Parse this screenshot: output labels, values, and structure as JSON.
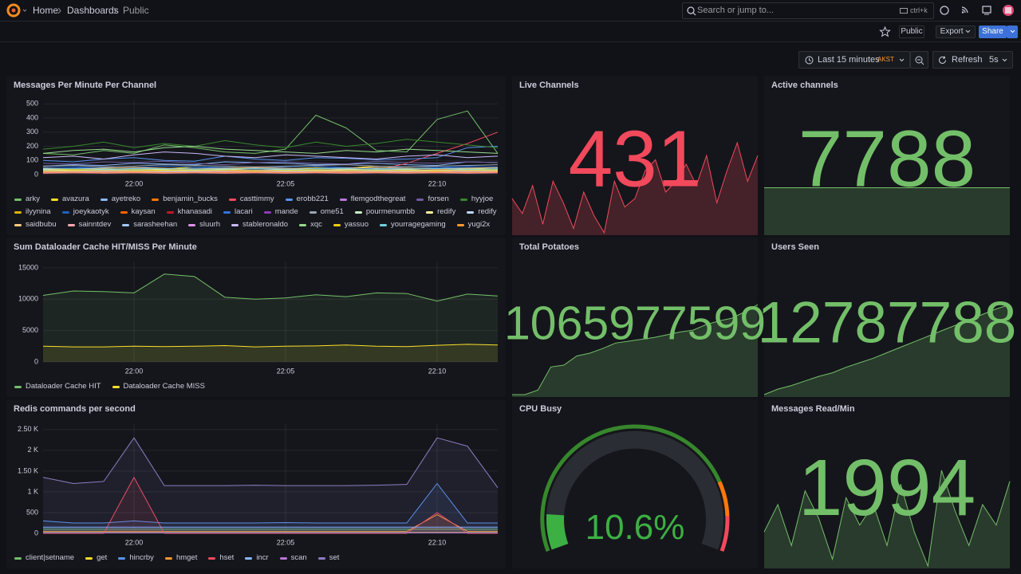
{
  "header": {
    "breadcrumbs": [
      "Home",
      "Dashboards",
      "Public"
    ],
    "search": "Search or jump to...",
    "shortcut": "ctrl+k"
  },
  "toolbar": {
    "badge": "Public",
    "export": "Export",
    "share": "Share",
    "time_range": "Last 15 minutes",
    "timezone": "AKST",
    "refresh": "Refresh",
    "interval": "5s"
  },
  "chart_data": [
    {
      "type": "line",
      "title": "Messages Per Minute Per Channel",
      "legend": "bottom",
      "grid": true,
      "categories": [
        null,
        null,
        null,
        "22:00",
        null,
        null,
        null,
        null,
        "22:05",
        null,
        null,
        null,
        null,
        "22:10",
        null,
        null
      ],
      "ylim": [
        0,
        530
      ],
      "yticks": [
        0,
        100,
        200,
        300,
        400,
        500
      ],
      "series": [
        {
          "name": "arky",
          "color": "#73bf69",
          "values": [
            150,
            140,
            170,
            150,
            210,
            190,
            160,
            150,
            180,
            420,
            330,
            170,
            160,
            390,
            450,
            150
          ]
        },
        {
          "name": "avazura",
          "color": "#fade2a",
          "values": [
            40,
            35,
            50,
            45,
            40,
            55,
            50,
            45,
            40,
            50,
            45,
            60,
            55,
            50,
            45,
            40
          ]
        },
        {
          "name": "ayetreko",
          "color": "#8ab8ff",
          "values": [
            60,
            70,
            65,
            80,
            75,
            70,
            90,
            85,
            80,
            70,
            75,
            80,
            70,
            65,
            90,
            85
          ]
        },
        {
          "name": "benjamin_bucks",
          "color": "#ff780a",
          "values": [
            30,
            25,
            30,
            35,
            30,
            40,
            35,
            30,
            35,
            30,
            40,
            35,
            30,
            35,
            40,
            30
          ]
        },
        {
          "name": "casttimmy",
          "color": "#f2495c",
          "values": [
            20,
            25,
            20,
            30,
            25,
            20,
            25,
            30,
            35,
            30,
            25,
            30,
            80,
            150,
            220,
            300
          ]
        },
        {
          "name": "erobb221",
          "color": "#5794f2",
          "values": [
            100,
            90,
            110,
            120,
            100,
            95,
            130,
            110,
            100,
            120,
            115,
            105,
            110,
            120,
            190,
            200
          ]
        },
        {
          "name": "flemgodthegreat",
          "color": "#b877d9",
          "values": [
            20,
            15,
            20,
            25,
            20,
            15,
            20,
            25,
            20,
            15,
            20,
            25,
            20,
            15,
            20,
            25
          ]
        },
        {
          "name": "forsen",
          "color": "#705da0",
          "values": [
            80,
            75,
            90,
            85,
            95,
            80,
            70,
            85,
            90,
            80,
            75,
            95,
            85,
            80,
            90,
            85
          ]
        },
        {
          "name": "hyyjoe",
          "color": "#37872d",
          "values": [
            180,
            200,
            230,
            190,
            220,
            200,
            240,
            210,
            190,
            230,
            200,
            220,
            250,
            230,
            210,
            190
          ]
        },
        {
          "name": "ilyynina",
          "color": "#e0b400",
          "values": [
            30,
            35,
            40,
            35,
            30,
            35,
            40,
            45,
            40,
            35,
            30,
            35,
            40,
            45,
            40,
            35
          ]
        },
        {
          "name": "joeykaotyk",
          "color": "#1f60c4",
          "values": [
            50,
            55,
            45,
            50,
            60,
            55,
            50,
            45,
            55,
            60,
            50,
            45,
            55,
            50,
            60,
            55
          ]
        },
        {
          "name": "kaysan",
          "color": "#fa6400",
          "values": [
            20,
            25,
            30,
            25,
            20,
            25,
            30,
            25,
            20,
            25,
            30,
            25,
            20,
            25,
            30,
            25
          ]
        },
        {
          "name": "khanasadi",
          "color": "#c4162a",
          "values": [
            10,
            15,
            10,
            15,
            10,
            15,
            10,
            15,
            10,
            15,
            10,
            15,
            10,
            15,
            10,
            15
          ]
        },
        {
          "name": "lacari",
          "color": "#3274d9",
          "values": [
            40,
            45,
            50,
            45,
            40,
            45,
            50,
            45,
            40,
            45,
            50,
            45,
            40,
            45,
            50,
            45
          ]
        },
        {
          "name": "mande",
          "color": "#8f3bb8",
          "values": [
            15,
            20,
            15,
            20,
            15,
            20,
            15,
            20,
            15,
            20,
            15,
            20,
            15,
            20,
            15,
            20
          ]
        },
        {
          "name": "ome51",
          "color": "#9aa5b1",
          "values": [
            60,
            65,
            55,
            60,
            70,
            65,
            60,
            55,
            60,
            65,
            70,
            60,
            55,
            60,
            65,
            70
          ]
        },
        {
          "name": "pourmenumbb",
          "color": "#c8f2c2",
          "values": [
            25,
            30,
            25,
            30,
            25,
            30,
            25,
            30,
            25,
            30,
            25,
            30,
            25,
            30,
            25,
            30
          ]
        },
        {
          "name": "redify",
          "color": "#fff899",
          "values": [
            35,
            30,
            35,
            40,
            35,
            30,
            35,
            40,
            35,
            30,
            35,
            40,
            35,
            30,
            35,
            40
          ]
        },
        {
          "name": "redify",
          "color": "#c0d8ff",
          "values": [
            20,
            25,
            20,
            25,
            20,
            25,
            20,
            25,
            20,
            25,
            20,
            25,
            20,
            25,
            20,
            25
          ]
        },
        {
          "name": "saidbubu",
          "color": "#ffcb7d",
          "values": [
            45,
            40,
            45,
            50,
            45,
            40,
            45,
            50,
            45,
            40,
            45,
            50,
            45,
            40,
            45,
            50
          ]
        },
        {
          "name": "sainntdev",
          "color": "#ffa6b0",
          "values": [
            10,
            12,
            10,
            12,
            10,
            12,
            10,
            12,
            10,
            12,
            10,
            12,
            10,
            12,
            10,
            12
          ]
        },
        {
          "name": "sarasheehan",
          "color": "#a0c8ff",
          "values": [
            30,
            28,
            32,
            30,
            28,
            32,
            30,
            28,
            32,
            30,
            28,
            32,
            30,
            28,
            32,
            30
          ]
        },
        {
          "name": "sluurh",
          "color": "#de90e8",
          "values": [
            18,
            20,
            22,
            20,
            18,
            20,
            22,
            20,
            18,
            20,
            22,
            20,
            18,
            20,
            22,
            20
          ]
        },
        {
          "name": "stableronaldo",
          "color": "#cab9f5",
          "values": [
            120,
            130,
            110,
            140,
            160,
            150,
            130,
            120,
            140,
            130,
            120,
            110,
            130,
            140,
            120,
            130
          ]
        },
        {
          "name": "xqc",
          "color": "#96d98d",
          "values": [
            150,
            170,
            180,
            160,
            190,
            200,
            180,
            170,
            160,
            150,
            170,
            160,
            180,
            170,
            160,
            150
          ]
        },
        {
          "name": "yassuo",
          "color": "#f2cc0c",
          "values": [
            25,
            30,
            28,
            26,
            30,
            32,
            28,
            26,
            30,
            28,
            26,
            30,
            28,
            26,
            30,
            28
          ]
        },
        {
          "name": "yourragegaming",
          "color": "#6ed0e0",
          "values": [
            40,
            42,
            38,
            40,
            42,
            38,
            40,
            42,
            38,
            40,
            42,
            38,
            40,
            42,
            38,
            40
          ]
        },
        {
          "name": "yugi2x",
          "color": "#ff9830",
          "values": [
            15,
            18,
            15,
            18,
            15,
            18,
            15,
            18,
            15,
            18,
            15,
            18,
            15,
            18,
            15,
            18
          ]
        }
      ]
    },
    {
      "type": "stat",
      "title": "Live Channels",
      "values": [
        431
      ],
      "color": "#f2495c",
      "sparkline": [
        412,
        405,
        418,
        400,
        420,
        410,
        398,
        415,
        404,
        396,
        420,
        408,
        412,
        425,
        430,
        415,
        420,
        428,
        418,
        432,
        410,
        425,
        438,
        420,
        432
      ]
    },
    {
      "type": "stat",
      "title": "Active channels",
      "values": [
        7788
      ],
      "color": "#73bf69",
      "sparkline": [
        7788,
        7788,
        7788,
        7788,
        7788,
        7788,
        7788,
        7788,
        7788,
        7788
      ]
    },
    {
      "type": "line",
      "title": "Sum Dataloader Cache HIT/MISS Per Minute",
      "legend": "bottom",
      "grid": true,
      "fill": true,
      "categories": [
        null,
        null,
        null,
        "22:00",
        null,
        null,
        null,
        null,
        "22:05",
        null,
        null,
        null,
        null,
        "22:10",
        null,
        null
      ],
      "ylim": [
        0,
        16000
      ],
      "yticks": [
        0,
        5000,
        10000,
        15000
      ],
      "series": [
        {
          "name": "Dataloader Cache HIT",
          "color": "#73bf69",
          "values": [
            10600,
            11300,
            11200,
            11000,
            14000,
            13600,
            10300,
            10000,
            10200,
            10700,
            10400,
            11000,
            10900,
            9700,
            10800,
            10500
          ]
        },
        {
          "name": "Dataloader Cache MISS",
          "color": "#fade2a",
          "values": [
            2500,
            2400,
            2400,
            2500,
            2450,
            2500,
            2600,
            2400,
            2500,
            2550,
            2700,
            2500,
            2450,
            2650,
            2800,
            2700
          ]
        }
      ]
    },
    {
      "type": "stat",
      "title": "Total Potatoes",
      "values": [
        1065977599
      ],
      "color": "#73bf69",
      "sparkline": [
        1065000000,
        1065000000,
        1065050000,
        1065300000,
        1065320000,
        1065420000,
        1065450000,
        1065500000,
        1065560000,
        1065580000,
        1065600000,
        1065620000,
        1065650000,
        1065680000,
        1065700000,
        1065760000,
        1065800000,
        1065830000,
        1065900000,
        1065977599
      ]
    },
    {
      "type": "stat",
      "title": "Users Seen",
      "values": [
        12787788
      ],
      "color": "#73bf69",
      "sparkline": [
        12786800,
        12786860,
        12786900,
        12786950,
        12787000,
        12787040,
        12787100,
        12787150,
        12787200,
        12787260,
        12787320,
        12787380,
        12787440,
        12787500,
        12787560,
        12787620,
        12787680,
        12787740,
        12787788
      ]
    },
    {
      "type": "line",
      "title": "Redis commands per second",
      "legend": "bottom",
      "grid": true,
      "fill": true,
      "categories": [
        null,
        null,
        null,
        "22:00",
        null,
        null,
        null,
        null,
        "22:05",
        null,
        null,
        null,
        null,
        "22:10",
        null,
        null
      ],
      "ylim": [
        0,
        2650
      ],
      "yticks": [
        0,
        500,
        {
          "value": 1000,
          "label": "1 K"
        },
        {
          "value": 1500,
          "label": "1.50 K"
        },
        {
          "value": 2000,
          "label": "2 K"
        },
        {
          "value": 2500,
          "label": "2.50 K"
        }
      ],
      "series": [
        {
          "name": "client|setname",
          "color": "#73bf69",
          "values": [
            100,
            100,
            100,
            100,
            100,
            100,
            100,
            100,
            100,
            100,
            100,
            100,
            100,
            100,
            100,
            100
          ]
        },
        {
          "name": "get",
          "color": "#fade2a",
          "values": [
            20,
            20,
            20,
            20,
            20,
            20,
            20,
            20,
            20,
            20,
            20,
            20,
            20,
            20,
            20,
            20
          ]
        },
        {
          "name": "hincrby",
          "color": "#5794f2",
          "values": [
            300,
            250,
            250,
            300,
            250,
            250,
            250,
            250,
            260,
            250,
            250,
            250,
            250,
            1200,
            250,
            250
          ]
        },
        {
          "name": "hmget",
          "color": "#ff9830",
          "values": [
            50,
            50,
            50,
            50,
            50,
            50,
            50,
            50,
            50,
            50,
            50,
            50,
            50,
            450,
            50,
            50
          ]
        },
        {
          "name": "hset",
          "color": "#f2495c",
          "values": [
            0,
            0,
            0,
            1350,
            0,
            0,
            0,
            0,
            0,
            0,
            0,
            0,
            0,
            500,
            0,
            0
          ]
        },
        {
          "name": "incr",
          "color": "#8ab8ff",
          "values": [
            150,
            150,
            150,
            150,
            150,
            150,
            150,
            150,
            150,
            150,
            150,
            150,
            150,
            150,
            150,
            150
          ]
        },
        {
          "name": "scan",
          "color": "#b877d9",
          "values": [
            10,
            10,
            10,
            10,
            10,
            10,
            10,
            10,
            10,
            10,
            10,
            10,
            10,
            10,
            10,
            10
          ]
        },
        {
          "name": "set",
          "color": "#8e7cc3",
          "values": [
            1350,
            1200,
            1250,
            2300,
            1150,
            1150,
            1150,
            1160,
            1150,
            1150,
            1150,
            1160,
            1180,
            2300,
            2100,
            1100
          ]
        }
      ]
    },
    {
      "type": "gauge",
      "title": "CPU Busy",
      "values": [
        10.6
      ],
      "value_labels": [
        "10.6%"
      ],
      "ylim": [
        0,
        100
      ],
      "color": "#3cb043",
      "thresholds": [
        {
          "from": 0,
          "color": "#37872d"
        },
        {
          "from": 80,
          "color": "#ff780a"
        },
        {
          "from": 90,
          "color": "#f2495c"
        }
      ]
    },
    {
      "type": "stat",
      "title": "Messages Read/Min",
      "values": [
        1994
      ],
      "color": "#73bf69",
      "sparkline": [
        1920,
        1960,
        1900,
        1980,
        1940,
        1880,
        1970,
        1930,
        1960,
        1900,
        1990,
        1920,
        1870,
        2010,
        1950,
        1900,
        1960,
        1930,
        1994
      ]
    }
  ]
}
